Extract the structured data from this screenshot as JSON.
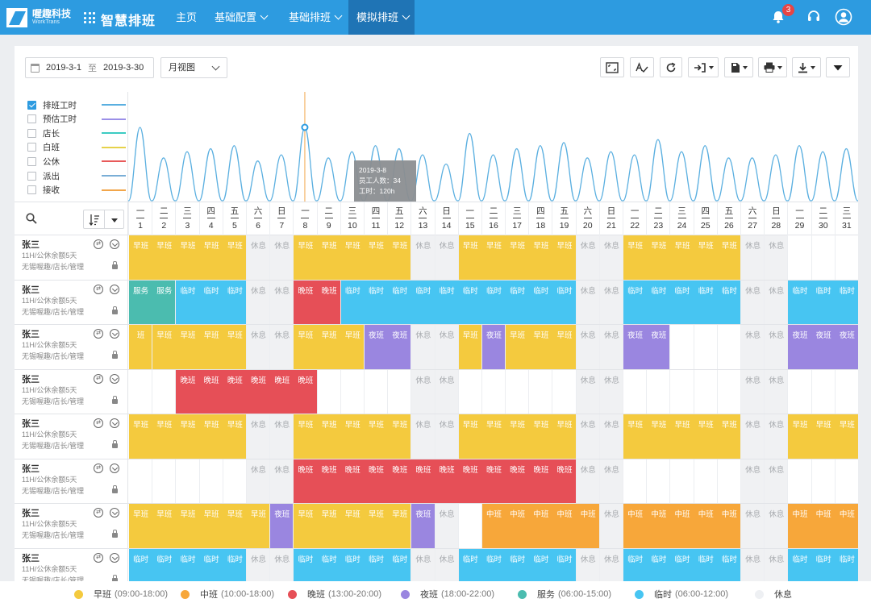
{
  "app": {
    "company": "喔趣科技",
    "company_en": "WorkTrans",
    "title": "智慧排班"
  },
  "nav": [
    {
      "label": "主页",
      "dropdown": false,
      "active": false
    },
    {
      "label": "基础配置",
      "dropdown": true,
      "active": false
    },
    {
      "label": "基础排班",
      "dropdown": true,
      "active": false
    },
    {
      "label": "模拟排班",
      "dropdown": true,
      "active": true
    }
  ],
  "header": {
    "notifications": "3",
    "icons": [
      "bell-icon",
      "headset-icon",
      "user-avatar-icon"
    ]
  },
  "toolbar": {
    "date_start": "2019-3-1",
    "date_sep": "至",
    "date_end": "2019-3-30",
    "view": "月视图",
    "buttons": [
      "fullscreen-icon",
      "signature-icon",
      "refresh-icon",
      "import-icon",
      "save-icon",
      "print-icon",
      "download-icon",
      "more-icon"
    ]
  },
  "legend": [
    {
      "label": "排班工时",
      "checked": true,
      "color": "#5aafe0"
    },
    {
      "label": "预估工时",
      "checked": false,
      "color": "#9b8fe8"
    },
    {
      "label": "店长",
      "checked": false,
      "color": "#3ccbc2"
    },
    {
      "label": "白班",
      "checked": false,
      "color": "#e6d24a"
    },
    {
      "label": "公休",
      "checked": false,
      "color": "#e85a5a"
    },
    {
      "label": "派出",
      "checked": false,
      "color": "#7aaed6"
    },
    {
      "label": "接收",
      "checked": false,
      "color": "#f2a64a"
    }
  ],
  "tooltip": {
    "date": "2019-3-8",
    "staff": "员工人数：34",
    "hours": "工时：120h"
  },
  "chart_data": {
    "type": "line",
    "x": [
      1,
      2,
      3,
      4,
      5,
      6,
      7,
      8,
      9,
      10,
      11,
      12,
      13,
      14,
      15,
      16,
      17,
      18,
      19,
      20,
      21,
      22,
      23,
      24,
      25,
      26,
      27,
      28,
      29,
      30,
      31
    ],
    "y": [
      120,
      70,
      80,
      85,
      90,
      65,
      75,
      120,
      70,
      80,
      90,
      85,
      75,
      60,
      110,
      75,
      85,
      90,
      95,
      70,
      80,
      75,
      100,
      80,
      90,
      70,
      70,
      75,
      90,
      80,
      85
    ],
    "series": [
      {
        "name": "排班工时",
        "color": "#5aafe0"
      }
    ],
    "highlight": {
      "x": 8,
      "label": "2019-3-8"
    }
  },
  "days": [
    {
      "w": "一",
      "d": "1"
    },
    {
      "w": "二",
      "d": "2"
    },
    {
      "w": "三",
      "d": "3"
    },
    {
      "w": "四",
      "d": "4"
    },
    {
      "w": "五",
      "d": "5"
    },
    {
      "w": "六",
      "d": "6"
    },
    {
      "w": "日",
      "d": "7"
    },
    {
      "w": "一",
      "d": "8"
    },
    {
      "w": "二",
      "d": "9"
    },
    {
      "w": "三",
      "d": "10"
    },
    {
      "w": "四",
      "d": "11"
    },
    {
      "w": "五",
      "d": "12"
    },
    {
      "w": "六",
      "d": "13"
    },
    {
      "w": "日",
      "d": "14"
    },
    {
      "w": "一",
      "d": "15"
    },
    {
      "w": "二",
      "d": "16"
    },
    {
      "w": "三",
      "d": "17"
    },
    {
      "w": "四",
      "d": "18"
    },
    {
      "w": "五",
      "d": "19"
    },
    {
      "w": "六",
      "d": "20"
    },
    {
      "w": "日",
      "d": "21"
    },
    {
      "w": "一",
      "d": "22"
    },
    {
      "w": "二",
      "d": "23"
    },
    {
      "w": "三",
      "d": "24"
    },
    {
      "w": "四",
      "d": "25"
    },
    {
      "w": "五",
      "d": "26"
    },
    {
      "w": "六",
      "d": "27"
    },
    {
      "w": "日",
      "d": "28"
    },
    {
      "w": "一",
      "d": "29"
    },
    {
      "w": "二",
      "d": "30"
    },
    {
      "w": "三",
      "d": "31"
    }
  ],
  "shift_types": {
    "早班": {
      "color": "#f4ca3e",
      "time": "(09:00-18:00)"
    },
    "中班": {
      "color": "#f7a73a",
      "time": "(10:00-18:00)"
    },
    "晚班": {
      "color": "#e64f57",
      "time": "(13:00-20:00)"
    },
    "夜班": {
      "color": "#9a86e0",
      "time": "(18:00-22:00)"
    },
    "服务": {
      "color": "#4bbcaf",
      "time": "(06:00-15:00)"
    },
    "临时": {
      "color": "#47c5f2",
      "time": "(06:00-12:00)"
    },
    "休息": {
      "color": "#eef0f3",
      "time": ""
    }
  },
  "footer_order": [
    "早班",
    "中班",
    "晚班",
    "夜班",
    "服务",
    "临时",
    "休息"
  ],
  "employees": [
    {
      "name": "张三",
      "line2": "11H/公休余额5天",
      "line3": "无锡喔趣/店长/管理",
      "cells": [
        "早班",
        "早班",
        "早班",
        "早班",
        "早班",
        "休息",
        "休息",
        "早班",
        "早班",
        "早班",
        "早班",
        "早班",
        "休息",
        "休息",
        "早班",
        "早班",
        "早班",
        "早班",
        "早班",
        "休息",
        "休息",
        "早班",
        "早班",
        "早班",
        "早班",
        "早班",
        "休息",
        "休息",
        "",
        "",
        ""
      ]
    },
    {
      "name": "张三",
      "line2": "11H/公休余额5天",
      "line3": "无锡喔趣/店长/管理",
      "cells": [
        "服务",
        "服务",
        "临时",
        "临时",
        "临时",
        "休息",
        "休息",
        "晚班",
        "晚班",
        "临时",
        "临时",
        "临时",
        "临时",
        "临时",
        "临时",
        "临时",
        "临时",
        "临时",
        "临时",
        "休息",
        "休息",
        "临时",
        "临时",
        "临时",
        "临时",
        "临时",
        "休息",
        "休息",
        "临时",
        "临时",
        "临时"
      ]
    },
    {
      "name": "张三",
      "line2": "11H/公休余额5天",
      "line3": "无锡喔趣/店长/管理",
      "cells": [
        "班",
        "早班",
        "早班",
        "早班",
        "早班",
        "休息",
        "休息",
        "早班",
        "早班",
        "早班",
        "夜班",
        "夜班",
        "休息",
        "休息",
        "早班",
        "夜班",
        "早班",
        "早班",
        "早班",
        "休息",
        "休息",
        "夜班",
        "夜班",
        "",
        "",
        "",
        "休息",
        "休息",
        "夜班",
        "夜班",
        "夜班"
      ]
    },
    {
      "name": "张三",
      "line2": "11H/公休余额5天",
      "line3": "无锡喔趣/店长/管理",
      "cells": [
        "",
        "",
        "晚班",
        "晚班",
        "晚班",
        "晚班",
        "晚班",
        "晚班",
        "",
        "",
        "",
        "",
        "休息",
        "休息",
        "",
        "",
        "",
        "",
        "",
        "休息",
        "休息",
        "",
        "",
        "",
        "",
        "",
        "休息",
        "休息",
        "",
        "",
        ""
      ]
    },
    {
      "name": "张三",
      "line2": "11H/公休余额5天",
      "line3": "无锡喔趣/店长/管理",
      "cells": [
        "早班",
        "早班",
        "早班",
        "早班",
        "早班",
        "休息",
        "休息",
        "早班",
        "早班",
        "早班",
        "早班",
        "早班",
        "休息",
        "休息",
        "早班",
        "早班",
        "早班",
        "早班",
        "早班",
        "休息",
        "休息",
        "早班",
        "早班",
        "早班",
        "早班",
        "早班",
        "休息",
        "休息",
        "早班",
        "早班",
        "早班"
      ]
    },
    {
      "name": "张三",
      "line2": "11H/公休余额5天",
      "line3": "无锡喔趣/店长/管理",
      "cells": [
        "",
        "",
        "",
        "",
        "",
        "休息",
        "休息",
        "晚班",
        "晚班",
        "晚班",
        "晚班",
        "晚班",
        "晚班",
        "晚班",
        "晚班",
        "晚班",
        "晚班",
        "晚班",
        "晚班",
        "休息",
        "休息",
        "",
        "",
        "",
        "",
        "",
        "休息",
        "休息",
        "",
        "",
        ""
      ]
    },
    {
      "name": "张三",
      "line2": "11H/公休余额5天",
      "line3": "无锡喔趣/店长/管理",
      "cells": [
        "早班",
        "早班",
        "早班",
        "早班",
        "早班",
        "早班",
        "夜班",
        "早班",
        "早班",
        "早班",
        "早班",
        "早班",
        "夜班",
        "休息",
        "",
        "中班",
        "中班",
        "中班",
        "中班",
        "中班",
        "休息",
        "中班",
        "中班",
        "中班",
        "中班",
        "中班",
        "休息",
        "休息",
        "中班",
        "中班",
        "中班"
      ]
    },
    {
      "name": "张三",
      "line2": "11H/公休余额5天",
      "line3": "无锡喔趣/店长/管理",
      "cells": [
        "临时",
        "临时",
        "临时",
        "临时",
        "临时",
        "休息",
        "休息",
        "临时",
        "临时",
        "临时",
        "临时",
        "临时",
        "休息",
        "休息",
        "临时",
        "临时",
        "临时",
        "临时",
        "临时",
        "休息",
        "休息",
        "临时",
        "临时",
        "临时",
        "临时",
        "临时",
        "休息",
        "休息",
        "临时",
        "临时",
        "临时"
      ]
    }
  ]
}
